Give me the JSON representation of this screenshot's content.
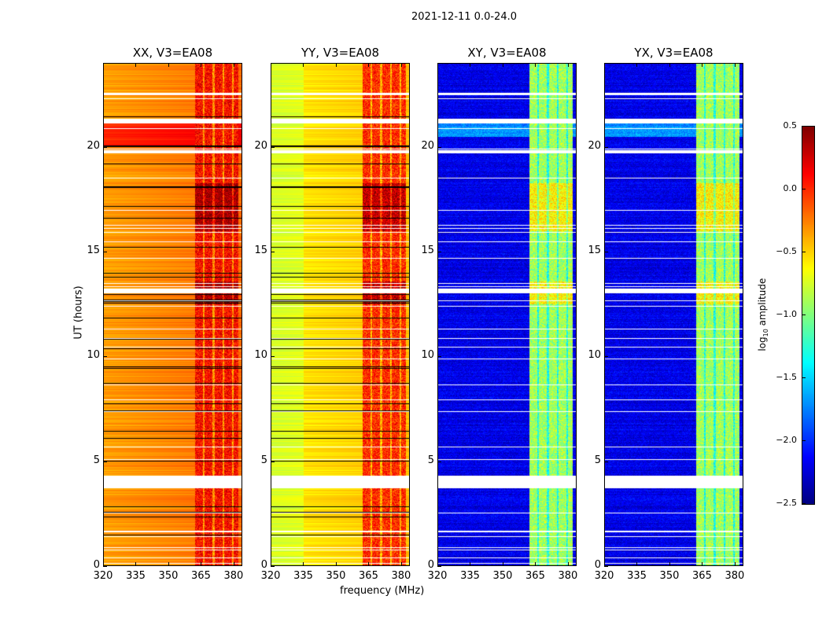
{
  "chart_data": {
    "type": "heatmap",
    "title": "2021-12-11 0.0-24.0",
    "xlabel": "frequency (MHz)",
    "ylabel": "UT (hours)",
    "xlim": [
      320,
      384
    ],
    "ylim": [
      0,
      24
    ],
    "xticks": [
      "320",
      "335",
      "350",
      "365",
      "380"
    ],
    "yticks": [
      "0",
      "5",
      "10",
      "15",
      "20"
    ],
    "colormap": "jet",
    "colorbar": {
      "label_prefix": "log",
      "label_sub": "10",
      "label_suffix": " amplitude",
      "range": [
        -2.5,
        0.5
      ],
      "ticks": [
        "0.5",
        "0.0",
        "−0.5",
        "−1.0",
        "−1.5",
        "−2.0",
        "−2.5"
      ]
    },
    "flagged_hours": [
      [
        3.75,
        4.35
      ],
      [
        21.15,
        21.3
      ],
      [
        19.7,
        19.85
      ],
      [
        13.1,
        13.25
      ],
      [
        22.5,
        22.6
      ]
    ],
    "panels": [
      {
        "title": "XX, V3=EA08",
        "background_log_amp": -0.35,
        "rfi_band_mhz": [
          362,
          382
        ],
        "rfi_log_amp": 0.1
      },
      {
        "title": "YY, V3=EA08",
        "background_log_amp": -0.6,
        "rfi_band_mhz": [
          362,
          382
        ],
        "rfi_log_amp": 0.0
      },
      {
        "title": "XY, V3=EA08",
        "background_log_amp": -2.2,
        "rfi_band_mhz": [
          362,
          382
        ],
        "rfi_log_amp": -0.9
      },
      {
        "title": "YX, V3=EA08",
        "background_log_amp": -2.2,
        "rfi_band_mhz": [
          362,
          382
        ],
        "rfi_log_amp": -0.9
      }
    ]
  }
}
